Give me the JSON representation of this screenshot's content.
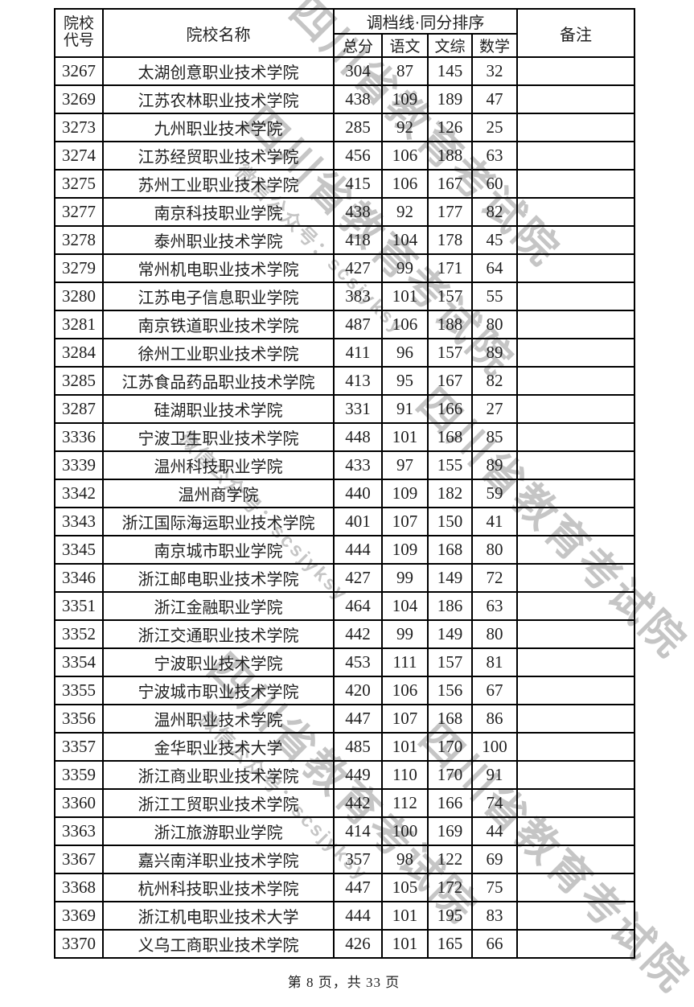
{
  "watermark": {
    "line_big": "四川省教育考试院",
    "line_small": "微信公众号：scsjyksy",
    "color": "#c5c5c5"
  },
  "table": {
    "headers": {
      "code_line1": "院校",
      "code_line2": "代号",
      "name": "院校名称",
      "group": "调档线·同分排序",
      "sub_total": "总分",
      "sub_chinese": "语文",
      "sub_liberal": "文综",
      "sub_math": "数学",
      "remark": "备注"
    },
    "rows": [
      {
        "code": "3267",
        "name": "太湖创意职业技术学院",
        "total": "304",
        "chinese": "87",
        "liberal": "145",
        "math": "32",
        "remark": ""
      },
      {
        "code": "3269",
        "name": "江苏农林职业技术学院",
        "total": "438",
        "chinese": "109",
        "liberal": "189",
        "math": "47",
        "remark": ""
      },
      {
        "code": "3273",
        "name": "九州职业技术学院",
        "total": "285",
        "chinese": "92",
        "liberal": "126",
        "math": "25",
        "remark": ""
      },
      {
        "code": "3274",
        "name": "江苏经贸职业技术学院",
        "total": "456",
        "chinese": "106",
        "liberal": "188",
        "math": "63",
        "remark": ""
      },
      {
        "code": "3275",
        "name": "苏州工业职业技术学院",
        "total": "415",
        "chinese": "106",
        "liberal": "167",
        "math": "60",
        "remark": ""
      },
      {
        "code": "3277",
        "name": "南京科技职业学院",
        "total": "438",
        "chinese": "92",
        "liberal": "177",
        "math": "82",
        "remark": ""
      },
      {
        "code": "3278",
        "name": "泰州职业技术学院",
        "total": "418",
        "chinese": "104",
        "liberal": "178",
        "math": "45",
        "remark": ""
      },
      {
        "code": "3279",
        "name": "常州机电职业技术学院",
        "total": "427",
        "chinese": "99",
        "liberal": "171",
        "math": "64",
        "remark": ""
      },
      {
        "code": "3280",
        "name": "江苏电子信息职业学院",
        "total": "383",
        "chinese": "101",
        "liberal": "157",
        "math": "55",
        "remark": ""
      },
      {
        "code": "3281",
        "name": "南京铁道职业技术学院",
        "total": "487",
        "chinese": "106",
        "liberal": "188",
        "math": "80",
        "remark": ""
      },
      {
        "code": "3284",
        "name": "徐州工业职业技术学院",
        "total": "411",
        "chinese": "96",
        "liberal": "157",
        "math": "89",
        "remark": ""
      },
      {
        "code": "3285",
        "name": "江苏食品药品职业技术学院",
        "total": "413",
        "chinese": "95",
        "liberal": "167",
        "math": "82",
        "remark": ""
      },
      {
        "code": "3287",
        "name": "硅湖职业技术学院",
        "total": "331",
        "chinese": "91",
        "liberal": "166",
        "math": "27",
        "remark": ""
      },
      {
        "code": "3336",
        "name": "宁波卫生职业技术学院",
        "total": "448",
        "chinese": "101",
        "liberal": "168",
        "math": "85",
        "remark": ""
      },
      {
        "code": "3339",
        "name": "温州科技职业学院",
        "total": "433",
        "chinese": "97",
        "liberal": "155",
        "math": "89",
        "remark": ""
      },
      {
        "code": "3342",
        "name": "温州商学院",
        "total": "440",
        "chinese": "109",
        "liberal": "182",
        "math": "59",
        "remark": ""
      },
      {
        "code": "3343",
        "name": "浙江国际海运职业技术学院",
        "total": "401",
        "chinese": "107",
        "liberal": "150",
        "math": "41",
        "remark": ""
      },
      {
        "code": "3345",
        "name": "南京城市职业学院",
        "total": "444",
        "chinese": "109",
        "liberal": "168",
        "math": "80",
        "remark": ""
      },
      {
        "code": "3346",
        "name": "浙江邮电职业技术学院",
        "total": "427",
        "chinese": "99",
        "liberal": "149",
        "math": "72",
        "remark": ""
      },
      {
        "code": "3351",
        "name": "浙江金融职业学院",
        "total": "464",
        "chinese": "104",
        "liberal": "186",
        "math": "63",
        "remark": ""
      },
      {
        "code": "3352",
        "name": "浙江交通职业技术学院",
        "total": "442",
        "chinese": "99",
        "liberal": "149",
        "math": "80",
        "remark": ""
      },
      {
        "code": "3354",
        "name": "宁波职业技术学院",
        "total": "453",
        "chinese": "111",
        "liberal": "157",
        "math": "81",
        "remark": ""
      },
      {
        "code": "3355",
        "name": "宁波城市职业技术学院",
        "total": "420",
        "chinese": "106",
        "liberal": "156",
        "math": "67",
        "remark": ""
      },
      {
        "code": "3356",
        "name": "温州职业技术学院",
        "total": "447",
        "chinese": "107",
        "liberal": "168",
        "math": "86",
        "remark": ""
      },
      {
        "code": "3357",
        "name": "金华职业技术大学",
        "total": "485",
        "chinese": "101",
        "liberal": "170",
        "math": "100",
        "remark": ""
      },
      {
        "code": "3359",
        "name": "浙江商业职业技术学院",
        "total": "449",
        "chinese": "110",
        "liberal": "170",
        "math": "91",
        "remark": ""
      },
      {
        "code": "3360",
        "name": "浙江工贸职业技术学院",
        "total": "442",
        "chinese": "112",
        "liberal": "166",
        "math": "74",
        "remark": ""
      },
      {
        "code": "3363",
        "name": "浙江旅游职业学院",
        "total": "414",
        "chinese": "100",
        "liberal": "169",
        "math": "44",
        "remark": ""
      },
      {
        "code": "3367",
        "name": "嘉兴南洋职业技术学院",
        "total": "357",
        "chinese": "98",
        "liberal": "122",
        "math": "69",
        "remark": ""
      },
      {
        "code": "3368",
        "name": "杭州科技职业技术学院",
        "total": "447",
        "chinese": "105",
        "liberal": "172",
        "math": "75",
        "remark": ""
      },
      {
        "code": "3369",
        "name": "浙江机电职业技术大学",
        "total": "444",
        "chinese": "101",
        "liberal": "195",
        "math": "83",
        "remark": ""
      },
      {
        "code": "3370",
        "name": "义乌工商职业技术学院",
        "total": "426",
        "chinese": "101",
        "liberal": "165",
        "math": "66",
        "remark": ""
      }
    ]
  },
  "footer": {
    "page_text": "第 8 页，共 33 页"
  }
}
